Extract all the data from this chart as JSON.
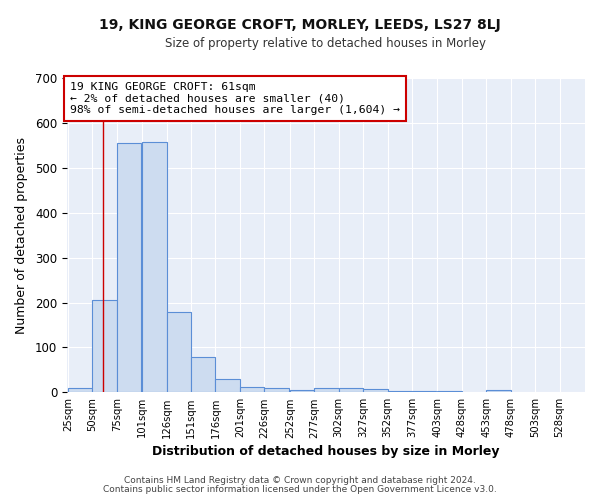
{
  "title": "19, KING GEORGE CROFT, MORLEY, LEEDS, LS27 8LJ",
  "subtitle": "Size of property relative to detached houses in Morley",
  "xlabel": "Distribution of detached houses by size in Morley",
  "ylabel": "Number of detached properties",
  "bin_labels": [
    "25sqm",
    "50sqm",
    "75sqm",
    "101sqm",
    "126sqm",
    "151sqm",
    "176sqm",
    "201sqm",
    "226sqm",
    "252sqm",
    "277sqm",
    "302sqm",
    "327sqm",
    "352sqm",
    "377sqm",
    "403sqm",
    "428sqm",
    "453sqm",
    "478sqm",
    "503sqm",
    "528sqm"
  ],
  "bar_values": [
    10,
    205,
    555,
    558,
    180,
    78,
    30,
    12,
    10,
    5,
    10,
    10,
    8,
    4,
    3,
    2,
    0,
    6,
    0,
    0,
    0
  ],
  "bar_color": "#cddcf0",
  "bar_edge_color": "#5b8ed6",
  "plot_bg_color": "#e8eef8",
  "fig_bg_color": "#ffffff",
  "grid_color": "#ffffff",
  "red_line_x": 61,
  "red_line_color": "#cc0000",
  "annotation_line1": "19 KING GEORGE CROFT: 61sqm",
  "annotation_line2": "← 2% of detached houses are smaller (40)",
  "annotation_line3": "98% of semi-detached houses are larger (1,604) →",
  "annotation_box_facecolor": "#ffffff",
  "annotation_box_edgecolor": "#cc0000",
  "ylim": [
    0,
    700
  ],
  "yticks": [
    0,
    100,
    200,
    300,
    400,
    500,
    600,
    700
  ],
  "footer_line1": "Contains HM Land Registry data © Crown copyright and database right 2024.",
  "footer_line2": "Contains public sector information licensed under the Open Government Licence v3.0."
}
